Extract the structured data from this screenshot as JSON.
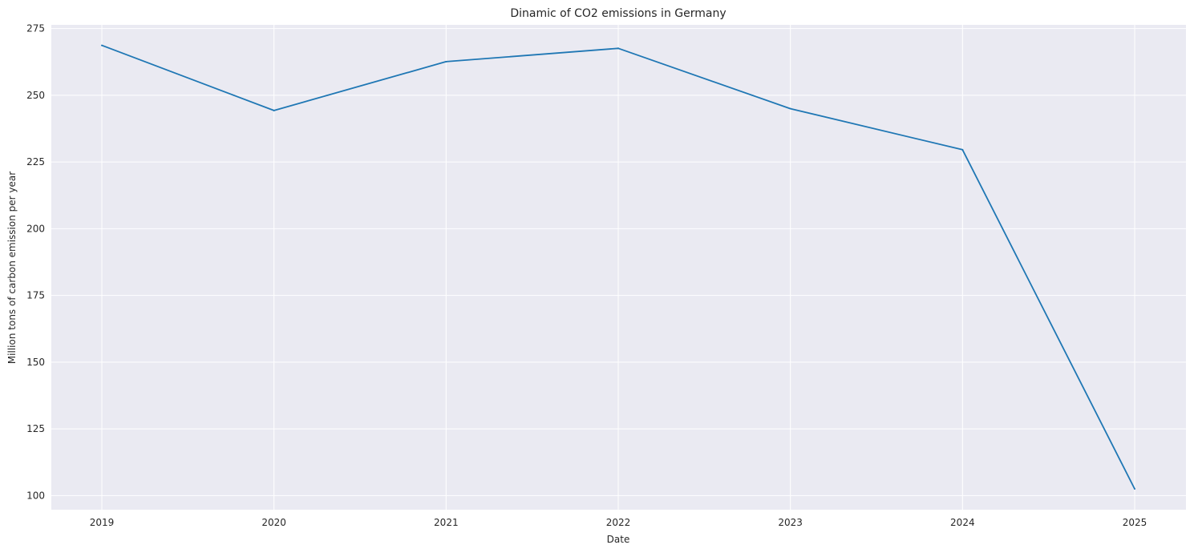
{
  "chart_data": {
    "type": "line",
    "title": "Dinamic of CO2 emissions in Germany",
    "xlabel": "Date",
    "ylabel": "Million tons of carbon emission per year",
    "x": [
      "2019",
      "2020",
      "2021",
      "2022",
      "2023",
      "2024",
      "2025"
    ],
    "series": [
      {
        "values": [
          268.7,
          244.3,
          262.6,
          267.6,
          245.0,
          229.6,
          102.5
        ],
        "color": "#1f77b4"
      }
    ],
    "ylim": [
      94.7,
      276.4
    ],
    "yticks": [
      100,
      125,
      150,
      175,
      200,
      225,
      250,
      275
    ],
    "grid": true,
    "background": "#eaeaf2",
    "gridColor": "#ffffff"
  }
}
